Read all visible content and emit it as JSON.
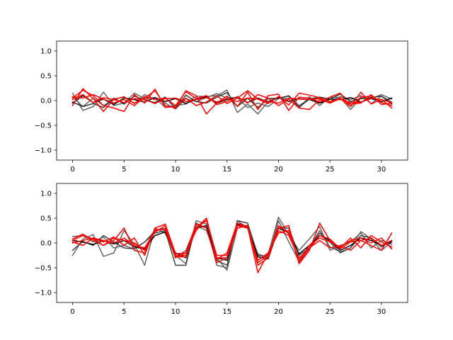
{
  "chart_data": [
    {
      "type": "line",
      "title": "",
      "xlabel": "",
      "ylabel": "",
      "xlim": [
        -1.55,
        32.55
      ],
      "ylim": [
        -1.2,
        1.2
      ],
      "xticks": [
        0,
        5,
        10,
        15,
        20,
        25,
        30
      ],
      "xtick_labels": [
        "0",
        "5",
        "10",
        "15",
        "20",
        "25",
        "30"
      ],
      "yticks": [
        -1.0,
        -0.5,
        0.0,
        0.5,
        1.0
      ],
      "ytick_labels": [
        "−1.0",
        "−0.5",
        "0.0",
        "0.5",
        "1.0"
      ],
      "grid": false,
      "legend": "none",
      "x": [
        0,
        1,
        2,
        3,
        4,
        5,
        6,
        7,
        8,
        9,
        10,
        11,
        12,
        13,
        14,
        15,
        16,
        17,
        18,
        19,
        20,
        21,
        22,
        23,
        24,
        25,
        26,
        27,
        28,
        29,
        30,
        31
      ],
      "series": [
        {
          "color": "#666666",
          "values": [
            0.15,
            -0.2,
            -0.12,
            0.17,
            -0.1,
            -0.05,
            0.15,
            0.04,
            0.06,
            -0.14,
            -0.1,
            -0.07,
            0.09,
            0.08,
            0.1,
            0.21,
            -0.24,
            -0.07,
            -0.27,
            -0.02,
            0.07,
            0.03,
            -0.15,
            0.08,
            -0.1,
            0.07,
            0.06,
            -0.18,
            0.05,
            0.04,
            0.12,
            0.03
          ]
        },
        {
          "color": "#666666",
          "values": [
            0.08,
            -0.12,
            0.05,
            -0.1,
            0.02,
            0.08,
            -0.06,
            0.12,
            0.03,
            -0.05,
            -0.17,
            0.04,
            -0.02,
            0.06,
            0.14,
            0.05,
            0.06,
            -0.14,
            -0.05,
            -0.12,
            0.04,
            0.1,
            -0.1,
            0.03,
            0.05,
            -0.02,
            0.08,
            0.02,
            0.1,
            -0.06,
            0.09,
            -0.03
          ]
        },
        {
          "color": "#333333",
          "values": [
            -0.03,
            -0.12,
            -0.06,
            -0.14,
            0.05,
            -0.07,
            0.09,
            0.01,
            -0.04,
            0.07,
            -0.16,
            0.11,
            -0.02,
            -0.05,
            0.07,
            0.16,
            -0.12,
            0.05,
            -0.14,
            0.04,
            0.05,
            0.09,
            -0.13,
            0.03,
            0.07,
            0.03,
            0.13,
            -0.02,
            0.04,
            0.06,
            0.09,
            -0.07
          ]
        },
        {
          "color": "#000000",
          "values": [
            -0.05,
            0.1,
            -0.04,
            0.03,
            -0.08,
            0.05,
            0.02,
            -0.03,
            0.06,
            -0.02,
            0.04,
            -0.06,
            0.03,
            0.08,
            -0.05,
            0.02,
            0.07,
            -0.04,
            0.05,
            -0.03,
            0.06,
            -0.02,
            0.04,
            0.02,
            -0.05,
            0.03,
            0.02,
            0.06,
            -0.03,
            0.04,
            -0.02,
            0.05
          ]
        },
        {
          "color": "#ff0000",
          "values": [
            -0.1,
            0.24,
            0.04,
            -0.22,
            0.03,
            0.07,
            -0.05,
            0.05,
            0.2,
            -0.1,
            -0.15,
            0.2,
            0.1,
            -0.27,
            -0.05,
            0.09,
            -0.12,
            0.17,
            -0.18,
            0.1,
            0.13,
            -0.2,
            0.07,
            0.05,
            -0.03,
            0.07,
            0.15,
            -0.12,
            0.17,
            -0.07,
            0.03,
            -0.15
          ]
        },
        {
          "color": "#ff0000",
          "values": [
            0.05,
            0.21,
            0.1,
            -0.1,
            -0.15,
            -0.22,
            0.12,
            -0.05,
            0.23,
            -0.14,
            -0.12,
            0.05,
            -0.1,
            -0.03,
            0.1,
            -0.06,
            0.05,
            0.2,
            0.03,
            -0.06,
            0.08,
            -0.09,
            0.15,
            0.11,
            0.06,
            -0.03,
            0.05,
            -0.07,
            -0.05,
            0.12,
            -0.08,
            -0.05
          ]
        },
        {
          "color": "#ff0000",
          "values": [
            0.08,
            0.05,
            0.12,
            0.03,
            -0.05,
            0.02,
            -0.1,
            0.08,
            0.02,
            0.05,
            -0.1,
            0.18,
            0.04,
            0.1,
            -0.08,
            -0.02,
            0.08,
            -0.05,
            0.12,
            0.05,
            -0.1,
            0.03,
            -0.15,
            -0.18,
            0.02,
            -0.05,
            0.04,
            -0.12,
            0.07,
            0.09,
            -0.04,
            -0.1
          ]
        },
        {
          "color": "#ff0000",
          "values": [
            0.02,
            0.12,
            -0.04,
            0.06,
            0.02,
            -0.04,
            0.04,
            0.02,
            -0.06,
            0.04,
            0.05,
            -0.02,
            0.02,
            0.06,
            -0.03,
            0.04,
            -0.02,
            0.05,
            0.03,
            -0.02,
            -0.05,
            0.05,
            0.03,
            0.02,
            0.04,
            -0.02,
            0.03,
            -0.04,
            -0.03,
            0.05,
            0.02,
            -0.04
          ]
        }
      ]
    },
    {
      "type": "line",
      "title": "",
      "xlabel": "",
      "ylabel": "",
      "xlim": [
        -1.55,
        32.55
      ],
      "ylim": [
        -1.2,
        1.2
      ],
      "xticks": [
        0,
        5,
        10,
        15,
        20,
        25,
        30
      ],
      "xtick_labels": [
        "0",
        "5",
        "10",
        "15",
        "20",
        "25",
        "30"
      ],
      "yticks": [
        -1.0,
        -0.5,
        0.0,
        0.5,
        1.0
      ],
      "ytick_labels": [
        "−1.0",
        "−0.5",
        "0.0",
        "0.5",
        "1.0"
      ],
      "grid": false,
      "legend": "none",
      "x": [
        0,
        1,
        2,
        3,
        4,
        5,
        6,
        7,
        8,
        9,
        10,
        11,
        12,
        13,
        14,
        15,
        16,
        17,
        18,
        19,
        20,
        21,
        22,
        23,
        24,
        25,
        26,
        27,
        28,
        29,
        30,
        31
      ],
      "series": [
        {
          "color": "#666666",
          "values": [
            -0.25,
            0.08,
            0.17,
            -0.27,
            -0.2,
            0.25,
            -0.03,
            -0.45,
            0.3,
            0.2,
            -0.25,
            -0.42,
            0.45,
            0.38,
            -0.45,
            -0.5,
            0.45,
            0.3,
            -0.22,
            -0.3,
            0.45,
            0.02,
            -0.37,
            -0.1,
            0.25,
            -0.08,
            -0.18,
            -0.1,
            0.23,
            0.08,
            -0.15,
            0.02
          ]
        },
        {
          "color": "#666666",
          "values": [
            0.13,
            0.15,
            0.02,
            0.12,
            -0.1,
            -0.05,
            -0.12,
            0.02,
            0.25,
            0.3,
            -0.3,
            -0.15,
            0.35,
            0.25,
            -0.3,
            -0.55,
            0.3,
            0.35,
            -0.35,
            -0.22,
            0.52,
            0.17,
            -0.15,
            0.08,
            0.33,
            -0.15,
            -0.05,
            0.02,
            0.2,
            -0.1,
            0.05,
            -0.03
          ]
        },
        {
          "color": "#444444",
          "values": [
            -0.15,
            0.03,
            -0.05,
            0.15,
            0.02,
            -0.1,
            -0.12,
            0.02,
            0.2,
            0.25,
            -0.45,
            -0.45,
            0.4,
            0.3,
            -0.35,
            -0.45,
            0.45,
            0.4,
            -0.25,
            -0.27,
            0.3,
            0.3,
            -0.25,
            -0.1,
            0.2,
            0.02,
            -0.2,
            -0.1,
            0.15,
            0.1,
            -0.08,
            0.05
          ]
        },
        {
          "color": "#000000",
          "values": [
            0.05,
            0.02,
            -0.03,
            0.05,
            -0.02,
            0.05,
            -0.08,
            -0.12,
            0.15,
            0.22,
            -0.2,
            -0.3,
            0.3,
            0.35,
            -0.3,
            -0.35,
            0.38,
            0.3,
            -0.28,
            -0.32,
            0.3,
            0.2,
            -0.22,
            -0.05,
            0.15,
            0.05,
            -0.15,
            -0.05,
            0.1,
            0.05,
            -0.05,
            0.02
          ]
        },
        {
          "color": "#ff0000",
          "values": [
            0.05,
            0.15,
            0.08,
            -0.05,
            0.05,
            0.3,
            -0.15,
            -0.2,
            0.27,
            0.27,
            -0.3,
            -0.2,
            0.25,
            0.5,
            -0.33,
            -0.2,
            0.4,
            0.33,
            -0.6,
            -0.2,
            0.2,
            0.25,
            -0.4,
            -0.1,
            0.05,
            -0.1,
            -0.05,
            -0.15,
            0.05,
            -0.05,
            -0.15,
            0.2
          ]
        },
        {
          "color": "#ff0000",
          "values": [
            0.02,
            -0.05,
            0.1,
            0.02,
            0.12,
            -0.05,
            0.1,
            -0.25,
            0.3,
            0.38,
            -0.22,
            -0.2,
            0.38,
            0.3,
            -0.4,
            -0.3,
            0.35,
            0.35,
            -0.45,
            -0.3,
            0.3,
            0.35,
            -0.42,
            -0.15,
            0.4,
            0.05,
            -0.1,
            0.1,
            -0.1,
            0.15,
            0.02,
            -0.08
          ]
        },
        {
          "color": "#ff0000",
          "values": [
            0.08,
            0.18,
            0.05,
            -0.05,
            0.1,
            0.05,
            0.0,
            -0.15,
            0.22,
            0.35,
            -0.25,
            -0.25,
            0.3,
            0.45,
            -0.25,
            -0.25,
            0.35,
            0.3,
            -0.35,
            -0.2,
            0.25,
            0.15,
            -0.3,
            -0.12,
            0.15,
            0.08,
            -0.12,
            0.02,
            0.05,
            0.1,
            -0.05,
            0.05
          ]
        },
        {
          "color": "#ff0000",
          "values": [
            0.0,
            0.05,
            0.1,
            0.05,
            0.0,
            0.1,
            -0.05,
            -0.1,
            0.25,
            0.28,
            -0.28,
            -0.28,
            0.3,
            0.5,
            -0.3,
            -0.3,
            0.3,
            0.35,
            -0.4,
            -0.25,
            0.35,
            0.2,
            -0.35,
            -0.05,
            0.1,
            0.02,
            -0.08,
            0.05,
            0.1,
            0.0,
            0.1,
            -0.12
          ]
        }
      ]
    }
  ]
}
